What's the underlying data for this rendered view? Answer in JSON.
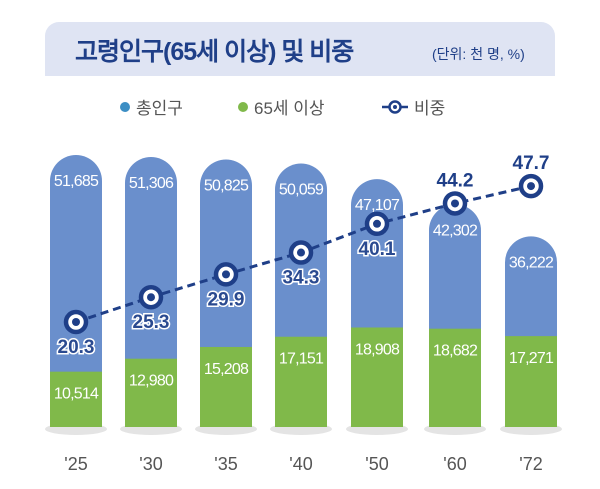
{
  "chart_data": {
    "type": "bar",
    "title": "고령인구(65세 이상) 및 비중",
    "unit_note": "(단위: 천 명, %)",
    "categories": [
      "'25",
      "'30",
      "'35",
      "'40",
      "'50",
      "'60",
      "'72"
    ],
    "series": [
      {
        "name": "총인구",
        "type": "bar",
        "color": "#6a8fcc",
        "values": [
          51685,
          51306,
          50825,
          50059,
          47107,
          42302,
          36222
        ],
        "labels": [
          "51,685",
          "51,306",
          "50,825",
          "50,059",
          "47,107",
          "42,302",
          "36,222"
        ]
      },
      {
        "name": "65세 이상",
        "type": "bar",
        "color": "#80b94a",
        "values": [
          10514,
          12980,
          15208,
          17151,
          18908,
          18682,
          17271
        ],
        "labels": [
          "10,514",
          "12,980",
          "15,208",
          "17,151",
          "18,908",
          "18,682",
          "17,271"
        ]
      },
      {
        "name": "비중",
        "type": "line",
        "color": "#1f3f88",
        "values": [
          20.3,
          25.3,
          29.9,
          34.3,
          40.1,
          44.2,
          47.7
        ],
        "labels": [
          "20.3",
          "25.3",
          "29.9",
          "34.3",
          "40.1",
          "44.2",
          "47.7"
        ]
      }
    ],
    "legend": [
      "총인구",
      "65세 이상",
      "비중"
    ],
    "legend_position": "top",
    "grid": false
  }
}
